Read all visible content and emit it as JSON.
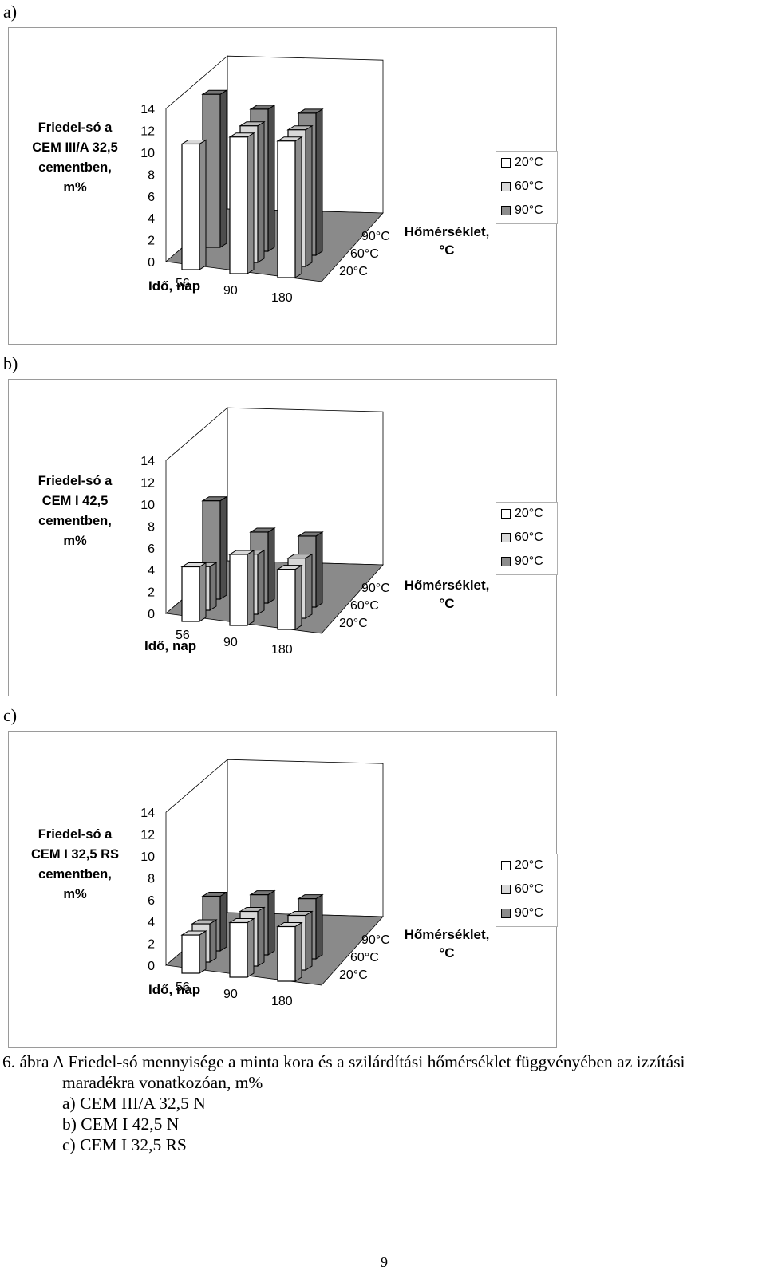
{
  "chart_data": [
    {
      "panel_label": "a)",
      "type": "bar",
      "ylabel": [
        "Friedel-só a",
        "CEM III/A 32,5",
        "cementben,",
        "m%"
      ],
      "xlabel": "Idő, nap",
      "zlabel": [
        "Hőmérséklet,",
        "°C"
      ],
      "categories": [
        "56",
        "90",
        "180"
      ],
      "z_categories": [
        "20°C",
        "60°C",
        "90°C"
      ],
      "yticks": [
        "0",
        "2",
        "4",
        "6",
        "8",
        "10",
        "12",
        "14"
      ],
      "ylim": [
        0,
        14
      ],
      "grid": false,
      "legend_position": "right",
      "series": [
        {
          "name": "20°C",
          "color": "#ffffff",
          "values": [
            11.5,
            12.5,
            12.5
          ]
        },
        {
          "name": "60°C",
          "color": "#d8d8d8",
          "values": [
            0,
            12.5,
            12.5
          ]
        },
        {
          "name": "90°C",
          "color": "#8c8c8c",
          "values": [
            14.0,
            13.0,
            13.0
          ]
        }
      ]
    },
    {
      "panel_label": "b)",
      "type": "bar",
      "ylabel": [
        "Friedel-só a",
        "CEM I 42,5",
        "cementben,",
        "m%"
      ],
      "xlabel": "Idő, nap",
      "zlabel": [
        "Hőmérséklet,",
        "°C"
      ],
      "categories": [
        "56",
        "90",
        "180"
      ],
      "z_categories": [
        "20°C",
        "60°C",
        "90°C"
      ],
      "yticks": [
        "0",
        "2",
        "4",
        "6",
        "8",
        "10",
        "12",
        "14"
      ],
      "ylim": [
        0,
        14
      ],
      "grid": false,
      "legend_position": "right",
      "series": [
        {
          "name": "20°C",
          "color": "#ffffff",
          "values": [
            5.0,
            6.5,
            5.5
          ]
        },
        {
          "name": "60°C",
          "color": "#d8d8d8",
          "values": [
            4.0,
            5.5,
            5.5
          ]
        },
        {
          "name": "90°C",
          "color": "#8c8c8c",
          "values": [
            9.0,
            6.5,
            6.5
          ]
        }
      ]
    },
    {
      "panel_label": "c)",
      "type": "bar",
      "ylabel": [
        "Friedel-só a",
        "CEM I 32,5 RS",
        "cementben,",
        "m%"
      ],
      "xlabel": "Idő, nap",
      "zlabel": [
        "Hőmérséklet,",
        "°C"
      ],
      "categories": [
        "56",
        "90",
        "180"
      ],
      "z_categories": [
        "20°C",
        "60°C",
        "90°C"
      ],
      "yticks": [
        "0",
        "2",
        "4",
        "6",
        "8",
        "10",
        "12",
        "14"
      ],
      "ylim": [
        0,
        14
      ],
      "grid": false,
      "legend_position": "right",
      "series": [
        {
          "name": "20°C",
          "color": "#ffffff",
          "values": [
            3.5,
            5.0,
            5.0
          ]
        },
        {
          "name": "60°C",
          "color": "#d8d8d8",
          "values": [
            3.5,
            5.0,
            5.0
          ]
        },
        {
          "name": "90°C",
          "color": "#8c8c8c",
          "values": [
            5.0,
            5.5,
            5.5
          ]
        }
      ]
    }
  ],
  "caption": {
    "line1": "6. ábra A Friedel-só mennyisége a minta kora és a szilárdítási hőmérséklet függvényében az izzítási",
    "line2": "maradékra vonatkozóan, m%",
    "line3": "a) CEM III/A 32,5 N",
    "line4": "b) CEM I 42,5 N",
    "line5": "c) CEM I 32,5 RS"
  },
  "page_number": "9"
}
